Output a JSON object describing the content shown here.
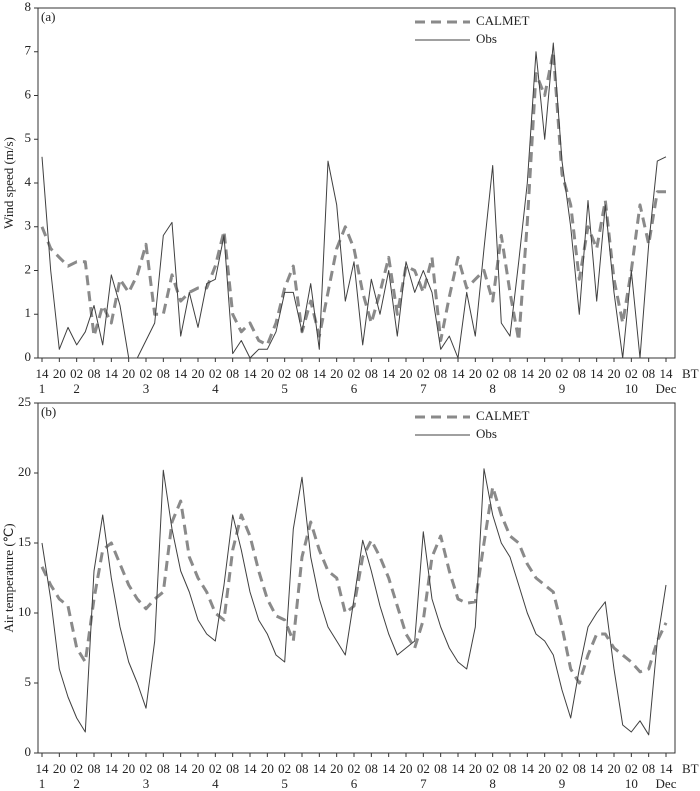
{
  "chart_data": [
    {
      "type": "line",
      "panel_label": "(a)",
      "ylabel": "Wind speed (m/s)",
      "x_unit": "BT",
      "categories": [
        "14",
        null,
        "20",
        null,
        "02",
        null,
        "08",
        null,
        "14",
        null,
        "20",
        null,
        "02",
        null,
        "08",
        null,
        "14",
        null,
        "20",
        null,
        "02",
        null,
        "08",
        null,
        "14",
        null,
        "20",
        null,
        "02",
        null,
        "08",
        null,
        "14",
        null,
        "20",
        null,
        "02",
        null,
        "08",
        null,
        "14",
        null,
        "20",
        null,
        "02",
        null,
        "08",
        null,
        "14",
        null,
        "20",
        null,
        "02",
        null,
        "08",
        null,
        "14",
        null,
        "20",
        null,
        "02",
        null,
        "08",
        null,
        "14",
        null,
        "20",
        null,
        "02",
        null,
        "08",
        null,
        "14"
      ],
      "day_labels": [
        {
          "value": 0,
          "label": "1"
        },
        {
          "value": 4,
          "label": "2"
        },
        {
          "value": 12,
          "label": "3"
        },
        {
          "value": 20,
          "label": "4"
        },
        {
          "value": 28,
          "label": "5"
        },
        {
          "value": 36,
          "label": "6"
        },
        {
          "value": 44,
          "label": "7"
        },
        {
          "value": 52,
          "label": "8"
        },
        {
          "value": 60,
          "label": "9"
        },
        {
          "value": 68,
          "label": "10"
        },
        {
          "value": 72,
          "label": "Dec"
        }
      ],
      "ylim": [
        0,
        8
      ],
      "yticks": [
        0,
        1,
        2,
        3,
        4,
        5,
        6,
        7,
        8
      ],
      "series": [
        {
          "name": "CALMET",
          "color": "#8a8a8a",
          "dashed": true,
          "values": [
            3.0,
            2.5,
            2.3,
            2.1,
            2.2,
            2.2,
            0.5,
            1.2,
            0.8,
            1.8,
            1.5,
            1.9,
            2.6,
            1.0,
            1.0,
            1.9,
            1.3,
            1.5,
            1.6,
            1.6,
            2.1,
            2.9,
            1.0,
            0.6,
            0.8,
            0.4,
            0.3,
            0.8,
            1.6,
            2.1,
            0.6,
            1.3,
            0.5,
            1.5,
            2.5,
            3.0,
            2.5,
            1.5,
            0.8,
            1.5,
            2.3,
            1.0,
            2.1,
            2.0,
            1.5,
            2.3,
            0.4,
            1.4,
            2.3,
            1.6,
            1.8,
            2.0,
            1.3,
            2.8,
            1.5,
            0.4,
            3.1,
            6.5,
            6.0,
            7.0,
            4.2,
            3.5,
            1.8,
            3.0,
            2.5,
            3.6,
            1.8,
            0.8,
            2.0,
            3.5,
            2.6,
            3.8,
            3.8
          ]
        },
        {
          "name": "Obs",
          "color": "#404040",
          "dashed": false,
          "values": [
            4.6,
            2.0,
            0.2,
            0.7,
            0.3,
            0.6,
            1.2,
            0.3,
            1.9,
            1.2,
            0.0,
            0.0,
            0.4,
            0.8,
            2.8,
            3.1,
            0.5,
            1.5,
            0.7,
            1.7,
            1.8,
            2.8,
            0.1,
            0.4,
            0.0,
            0.2,
            0.2,
            0.6,
            1.5,
            1.5,
            0.6,
            1.7,
            0.2,
            4.5,
            3.5,
            1.3,
            2.2,
            0.3,
            1.8,
            1.0,
            2.0,
            0.5,
            2.2,
            1.5,
            2.0,
            1.5,
            0.2,
            0.5,
            0.0,
            1.5,
            0.5,
            2.5,
            4.4,
            0.8,
            0.5,
            2.2,
            4.0,
            7.0,
            5.0,
            7.2,
            4.5,
            3.0,
            1.0,
            3.6,
            1.3,
            3.5,
            1.5,
            0.0,
            2.0,
            0.0,
            2.6,
            4.5,
            4.6
          ]
        }
      ]
    },
    {
      "type": "line",
      "panel_label": "(b)",
      "ylabel": "Air temperature (℃)",
      "x_unit": "BT",
      "categories": [
        "14",
        null,
        "20",
        null,
        "02",
        null,
        "08",
        null,
        "14",
        null,
        "20",
        null,
        "02",
        null,
        "08",
        null,
        "14",
        null,
        "20",
        null,
        "02",
        null,
        "08",
        null,
        "14",
        null,
        "20",
        null,
        "02",
        null,
        "08",
        null,
        "14",
        null,
        "20",
        null,
        "02",
        null,
        "08",
        null,
        "14",
        null,
        "20",
        null,
        "02",
        null,
        "08",
        null,
        "14",
        null,
        "20",
        null,
        "02",
        null,
        "08",
        null,
        "14",
        null,
        "20",
        null,
        "02",
        null,
        "08",
        null,
        "14",
        null,
        "20",
        null,
        "02",
        null,
        "08",
        null,
        "14"
      ],
      "day_labels": [
        {
          "value": 0,
          "label": "1"
        },
        {
          "value": 4,
          "label": "2"
        },
        {
          "value": 12,
          "label": "3"
        },
        {
          "value": 20,
          "label": "4"
        },
        {
          "value": 28,
          "label": "5"
        },
        {
          "value": 36,
          "label": "6"
        },
        {
          "value": 44,
          "label": "7"
        },
        {
          "value": 52,
          "label": "8"
        },
        {
          "value": 60,
          "label": "9"
        },
        {
          "value": 68,
          "label": "10"
        },
        {
          "value": 72,
          "label": "Dec"
        }
      ],
      "ylim": [
        0,
        25
      ],
      "yticks": [
        0,
        5,
        10,
        15,
        20,
        25
      ],
      "series": [
        {
          "name": "CALMET",
          "color": "#8a8a8a",
          "dashed": true,
          "values": [
            13.3,
            12.0,
            11.0,
            10.5,
            7.5,
            6.5,
            11.0,
            14.5,
            15.0,
            13.5,
            12.0,
            11.0,
            10.3,
            11.0,
            11.5,
            16.5,
            18.0,
            14.0,
            12.5,
            11.5,
            10.0,
            9.5,
            14.5,
            17.0,
            15.5,
            13.0,
            11.0,
            9.8,
            9.5,
            8.0,
            14.0,
            16.5,
            14.5,
            13.0,
            12.5,
            10.0,
            10.5,
            14.0,
            15.2,
            14.0,
            12.5,
            10.5,
            8.5,
            7.5,
            9.5,
            14.0,
            15.5,
            13.0,
            11.0,
            10.7,
            10.8,
            15.0,
            19.0,
            17.0,
            15.5,
            15.0,
            13.5,
            12.5,
            12.0,
            11.5,
            9.0,
            6.0,
            5.0,
            7.0,
            8.5,
            8.5,
            7.5,
            7.0,
            6.5,
            5.8,
            6.0,
            8.0,
            9.3
          ]
        },
        {
          "name": "Obs",
          "color": "#404040",
          "dashed": false,
          "values": [
            15.0,
            11.0,
            6.0,
            4.0,
            2.5,
            1.5,
            13.0,
            17.0,
            12.5,
            9.0,
            6.5,
            5.0,
            3.2,
            8.0,
            20.2,
            16.0,
            13.0,
            11.5,
            9.5,
            8.5,
            8.0,
            12.0,
            17.0,
            14.5,
            11.5,
            9.5,
            8.5,
            7.0,
            6.5,
            16.0,
            19.7,
            14.0,
            11.0,
            9.0,
            8.0,
            7.0,
            11.0,
            15.2,
            13.0,
            10.5,
            8.5,
            7.0,
            7.5,
            8.0,
            15.8,
            11.0,
            9.0,
            7.5,
            6.5,
            6.0,
            9.0,
            20.3,
            17.0,
            15.0,
            14.0,
            12.0,
            10.0,
            8.5,
            8.0,
            7.0,
            4.5,
            2.5,
            6.0,
            9.0,
            10.0,
            10.8,
            6.0,
            2.0,
            1.5,
            2.3,
            1.3,
            8.0,
            12.0
          ]
        }
      ]
    }
  ]
}
